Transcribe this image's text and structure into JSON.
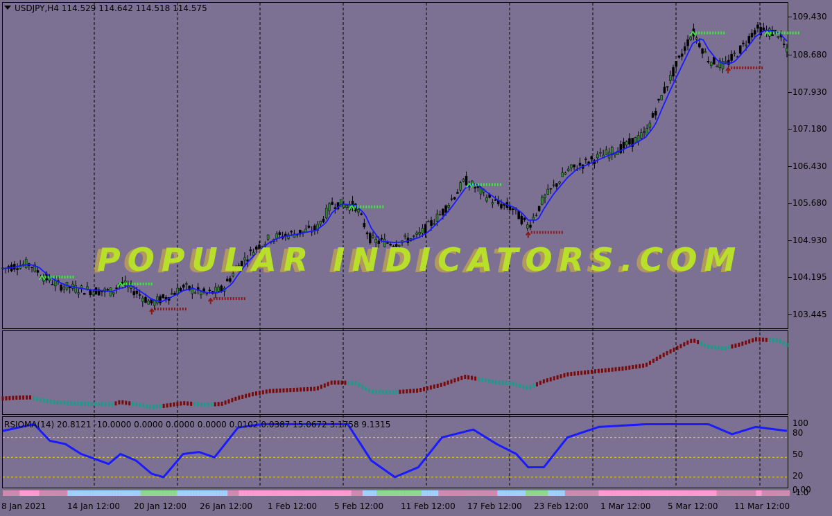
{
  "chart": {
    "symbol_text": "USDJPY,H4  114.529 114.642 114.518 114.575",
    "rsi_text": "RSIOMA(14) 20.8121 -10.0000 0.0000 0.0000 0.0000 0.0102 0.0387 15.0672 3.1758 9.1315",
    "watermark": "POPULAR INDICATORS.COM"
  },
  "colors": {
    "background": "#7c7192",
    "price_line": "#1a1aff",
    "up_marker": "#3ee83e",
    "down_marker": "#8a1a1a",
    "rsi_line": "#1a1aff",
    "level_line": "#e6d21a",
    "trend_up": "#7a0a0a",
    "trend_down": "#1e9a8a"
  },
  "price_axis": [
    "109.430",
    "108.680",
    "107.930",
    "107.180",
    "106.430",
    "105.680",
    "104.930",
    "104.195",
    "103.445"
  ],
  "rsi_axis": [
    "100",
    "80",
    "50",
    "20",
    "0.00",
    "-1.0"
  ],
  "time_axis": [
    "8 Jan 2021",
    "14 Jan 12:00",
    "20 Jan 12:00",
    "26 Jan 12:00",
    "1 Feb 12:00",
    "5 Feb 12:00",
    "11 Feb 12:00",
    "17 Feb 12:00",
    "23 Feb 12:00",
    "1 Mar 12:00",
    "5 Mar 12:00",
    "11 Mar 12:00"
  ],
  "chart_data": {
    "type": "line",
    "price_series": [
      {
        "t": 0,
        "p": 104.2
      },
      {
        "t": 0.02,
        "p": 104.28
      },
      {
        "t": 0.035,
        "p": 104.3
      },
      {
        "t": 0.05,
        "p": 104.05
      },
      {
        "t": 0.07,
        "p": 103.85
      },
      {
        "t": 0.1,
        "p": 103.75
      },
      {
        "t": 0.14,
        "p": 103.7
      },
      {
        "t": 0.15,
        "p": 103.9
      },
      {
        "t": 0.17,
        "p": 103.7
      },
      {
        "t": 0.19,
        "p": 103.45
      },
      {
        "t": 0.21,
        "p": 103.6
      },
      {
        "t": 0.23,
        "p": 103.8
      },
      {
        "t": 0.26,
        "p": 103.65
      },
      {
        "t": 0.28,
        "p": 103.75
      },
      {
        "t": 0.3,
        "p": 104.25
      },
      {
        "t": 0.32,
        "p": 104.6
      },
      {
        "t": 0.34,
        "p": 104.85
      },
      {
        "t": 0.37,
        "p": 104.95
      },
      {
        "t": 0.4,
        "p": 105.05
      },
      {
        "t": 0.42,
        "p": 105.6
      },
      {
        "t": 0.45,
        "p": 105.55
      },
      {
        "t": 0.47,
        "p": 104.8
      },
      {
        "t": 0.5,
        "p": 104.75
      },
      {
        "t": 0.53,
        "p": 104.9
      },
      {
        "t": 0.56,
        "p": 105.4
      },
      {
        "t": 0.59,
        "p": 106.1
      },
      {
        "t": 0.61,
        "p": 105.85
      },
      {
        "t": 0.63,
        "p": 105.6
      },
      {
        "t": 0.65,
        "p": 105.5
      },
      {
        "t": 0.67,
        "p": 105.1
      },
      {
        "t": 0.69,
        "p": 105.7
      },
      {
        "t": 0.72,
        "p": 106.3
      },
      {
        "t": 0.76,
        "p": 106.6
      },
      {
        "t": 0.79,
        "p": 106.8
      },
      {
        "t": 0.82,
        "p": 107.1
      },
      {
        "t": 0.84,
        "p": 107.9
      },
      {
        "t": 0.86,
        "p": 108.6
      },
      {
        "t": 0.88,
        "p": 109.3
      },
      {
        "t": 0.9,
        "p": 108.7
      },
      {
        "t": 0.92,
        "p": 108.55
      },
      {
        "t": 0.94,
        "p": 108.9
      },
      {
        "t": 0.96,
        "p": 109.35
      },
      {
        "t": 0.99,
        "p": 109.25
      },
      {
        "t": 1,
        "p": 108.85
      }
    ],
    "rsi_series": [
      {
        "t": 0,
        "v": 90
      },
      {
        "t": 0.04,
        "v": 100
      },
      {
        "t": 0.06,
        "v": 75
      },
      {
        "t": 0.08,
        "v": 70
      },
      {
        "t": 0.1,
        "v": 55
      },
      {
        "t": 0.135,
        "v": 40
      },
      {
        "t": 0.15,
        "v": 55
      },
      {
        "t": 0.17,
        "v": 45
      },
      {
        "t": 0.19,
        "v": 25
      },
      {
        "t": 0.205,
        "v": 20
      },
      {
        "t": 0.23,
        "v": 55
      },
      {
        "t": 0.25,
        "v": 58
      },
      {
        "t": 0.27,
        "v": 50
      },
      {
        "t": 0.3,
        "v": 95
      },
      {
        "t": 0.33,
        "v": 100
      },
      {
        "t": 0.44,
        "v": 100
      },
      {
        "t": 0.47,
        "v": 45
      },
      {
        "t": 0.5,
        "v": 20
      },
      {
        "t": 0.53,
        "v": 35
      },
      {
        "t": 0.56,
        "v": 80
      },
      {
        "t": 0.6,
        "v": 92
      },
      {
        "t": 0.63,
        "v": 70
      },
      {
        "t": 0.655,
        "v": 55
      },
      {
        "t": 0.67,
        "v": 35
      },
      {
        "t": 0.69,
        "v": 35
      },
      {
        "t": 0.72,
        "v": 80
      },
      {
        "t": 0.76,
        "v": 96
      },
      {
        "t": 0.82,
        "v": 100
      },
      {
        "t": 0.9,
        "v": 100
      },
      {
        "t": 0.93,
        "v": 85
      },
      {
        "t": 0.96,
        "v": 96
      },
      {
        "t": 1,
        "v": 90
      }
    ],
    "rsi_levels": [
      80,
      50,
      20
    ],
    "ylim": [
      103.2,
      109.65
    ],
    "rsi_ylim": [
      0,
      110
    ]
  }
}
